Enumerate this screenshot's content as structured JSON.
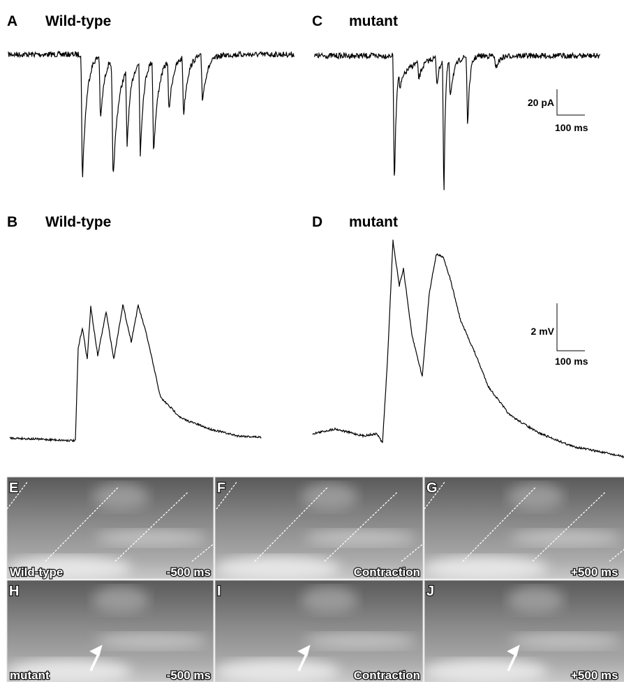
{
  "panels": [
    {
      "label": "A",
      "title": "Wild-type"
    },
    {
      "label": "C",
      "title": "mutant"
    },
    {
      "label": "B",
      "title": "Wild-type"
    },
    {
      "label": "D",
      "title": "mutant"
    }
  ],
  "scale_bars": [
    {
      "y_label": "20 pA",
      "x_label": "100 ms"
    },
    {
      "y_label": "2 mV",
      "x_label": "100 ms"
    }
  ],
  "images": [
    {
      "label": "E",
      "caption_left": "Wild-type",
      "caption_right": "-500 ms"
    },
    {
      "label": "F",
      "caption_right": "Contraction"
    },
    {
      "label": "G",
      "caption_right": "+500 ms"
    },
    {
      "label": "H",
      "caption_left": "mutant",
      "caption_right": "-500 ms"
    },
    {
      "label": "I",
      "caption_right": "Contraction"
    },
    {
      "label": "J",
      "caption_right": "+500 ms"
    }
  ]
}
